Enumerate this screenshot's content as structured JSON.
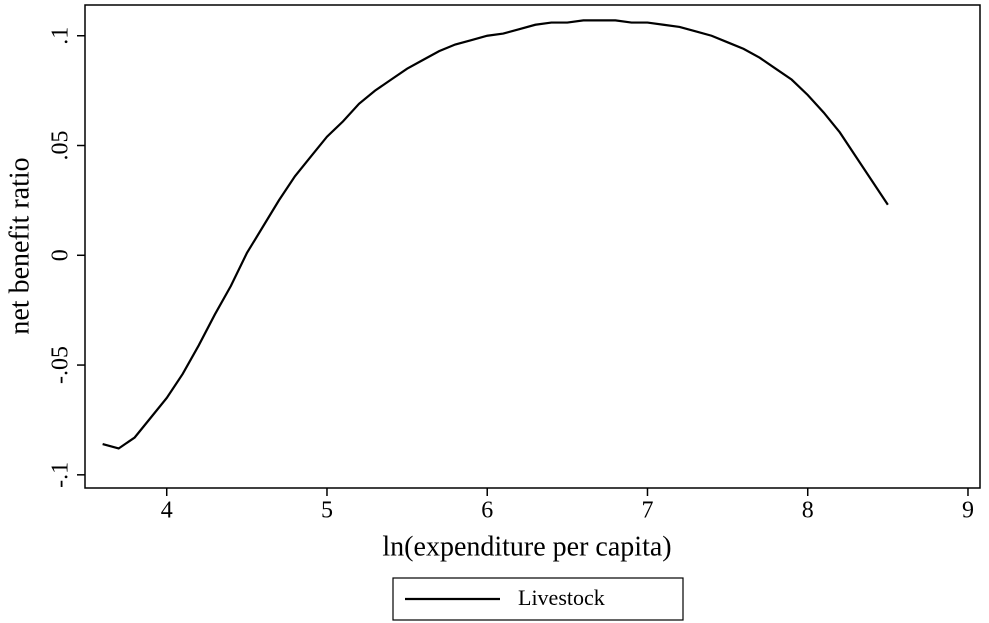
{
  "chart_data": {
    "type": "line",
    "x_label": "ln(expenditure per capita)",
    "y_label": "net benefit ratio",
    "x": [
      3.6,
      3.7,
      3.8,
      3.9,
      4.0,
      4.1,
      4.2,
      4.3,
      4.4,
      4.5,
      4.6,
      4.7,
      4.8,
      4.9,
      5.0,
      5.1,
      5.2,
      5.3,
      5.4,
      5.5,
      5.6,
      5.7,
      5.8,
      5.9,
      6.0,
      6.1,
      6.2,
      6.3,
      6.4,
      6.5,
      6.6,
      6.7,
      6.8,
      6.9,
      7.0,
      7.1,
      7.2,
      7.3,
      7.4,
      7.5,
      7.6,
      7.7,
      7.8,
      7.9,
      8.0,
      8.1,
      8.2,
      8.3,
      8.4,
      8.5
    ],
    "series": [
      {
        "name": "Livestock",
        "color": "#000000",
        "values": [
          -0.086,
          -0.088,
          -0.083,
          -0.074,
          -0.065,
          -0.054,
          -0.041,
          -0.027,
          -0.014,
          0.001,
          0.013,
          0.025,
          0.036,
          0.045,
          0.054,
          0.061,
          0.069,
          0.075,
          0.08,
          0.085,
          0.089,
          0.093,
          0.096,
          0.098,
          0.1,
          0.101,
          0.103,
          0.105,
          0.106,
          0.106,
          0.107,
          0.107,
          0.107,
          0.106,
          0.106,
          0.105,
          0.104,
          0.102,
          0.1,
          0.097,
          0.094,
          0.09,
          0.085,
          0.08,
          0.073,
          0.065,
          0.056,
          0.045,
          0.034,
          0.023
        ]
      }
    ],
    "xlim": [
      3.49,
      9.075
    ],
    "xticks": [
      4,
      5,
      6,
      7,
      8,
      9
    ],
    "ylim": [
      -0.106,
      0.114
    ],
    "yticks": [
      {
        "value": -0.1,
        "label": "-.1"
      },
      {
        "value": -0.05,
        "label": "-.05"
      },
      0,
      {
        "value": 0.05,
        "label": ".05"
      },
      {
        "value": 0.1,
        "label": ".1"
      }
    ],
    "legend": "bottom"
  }
}
